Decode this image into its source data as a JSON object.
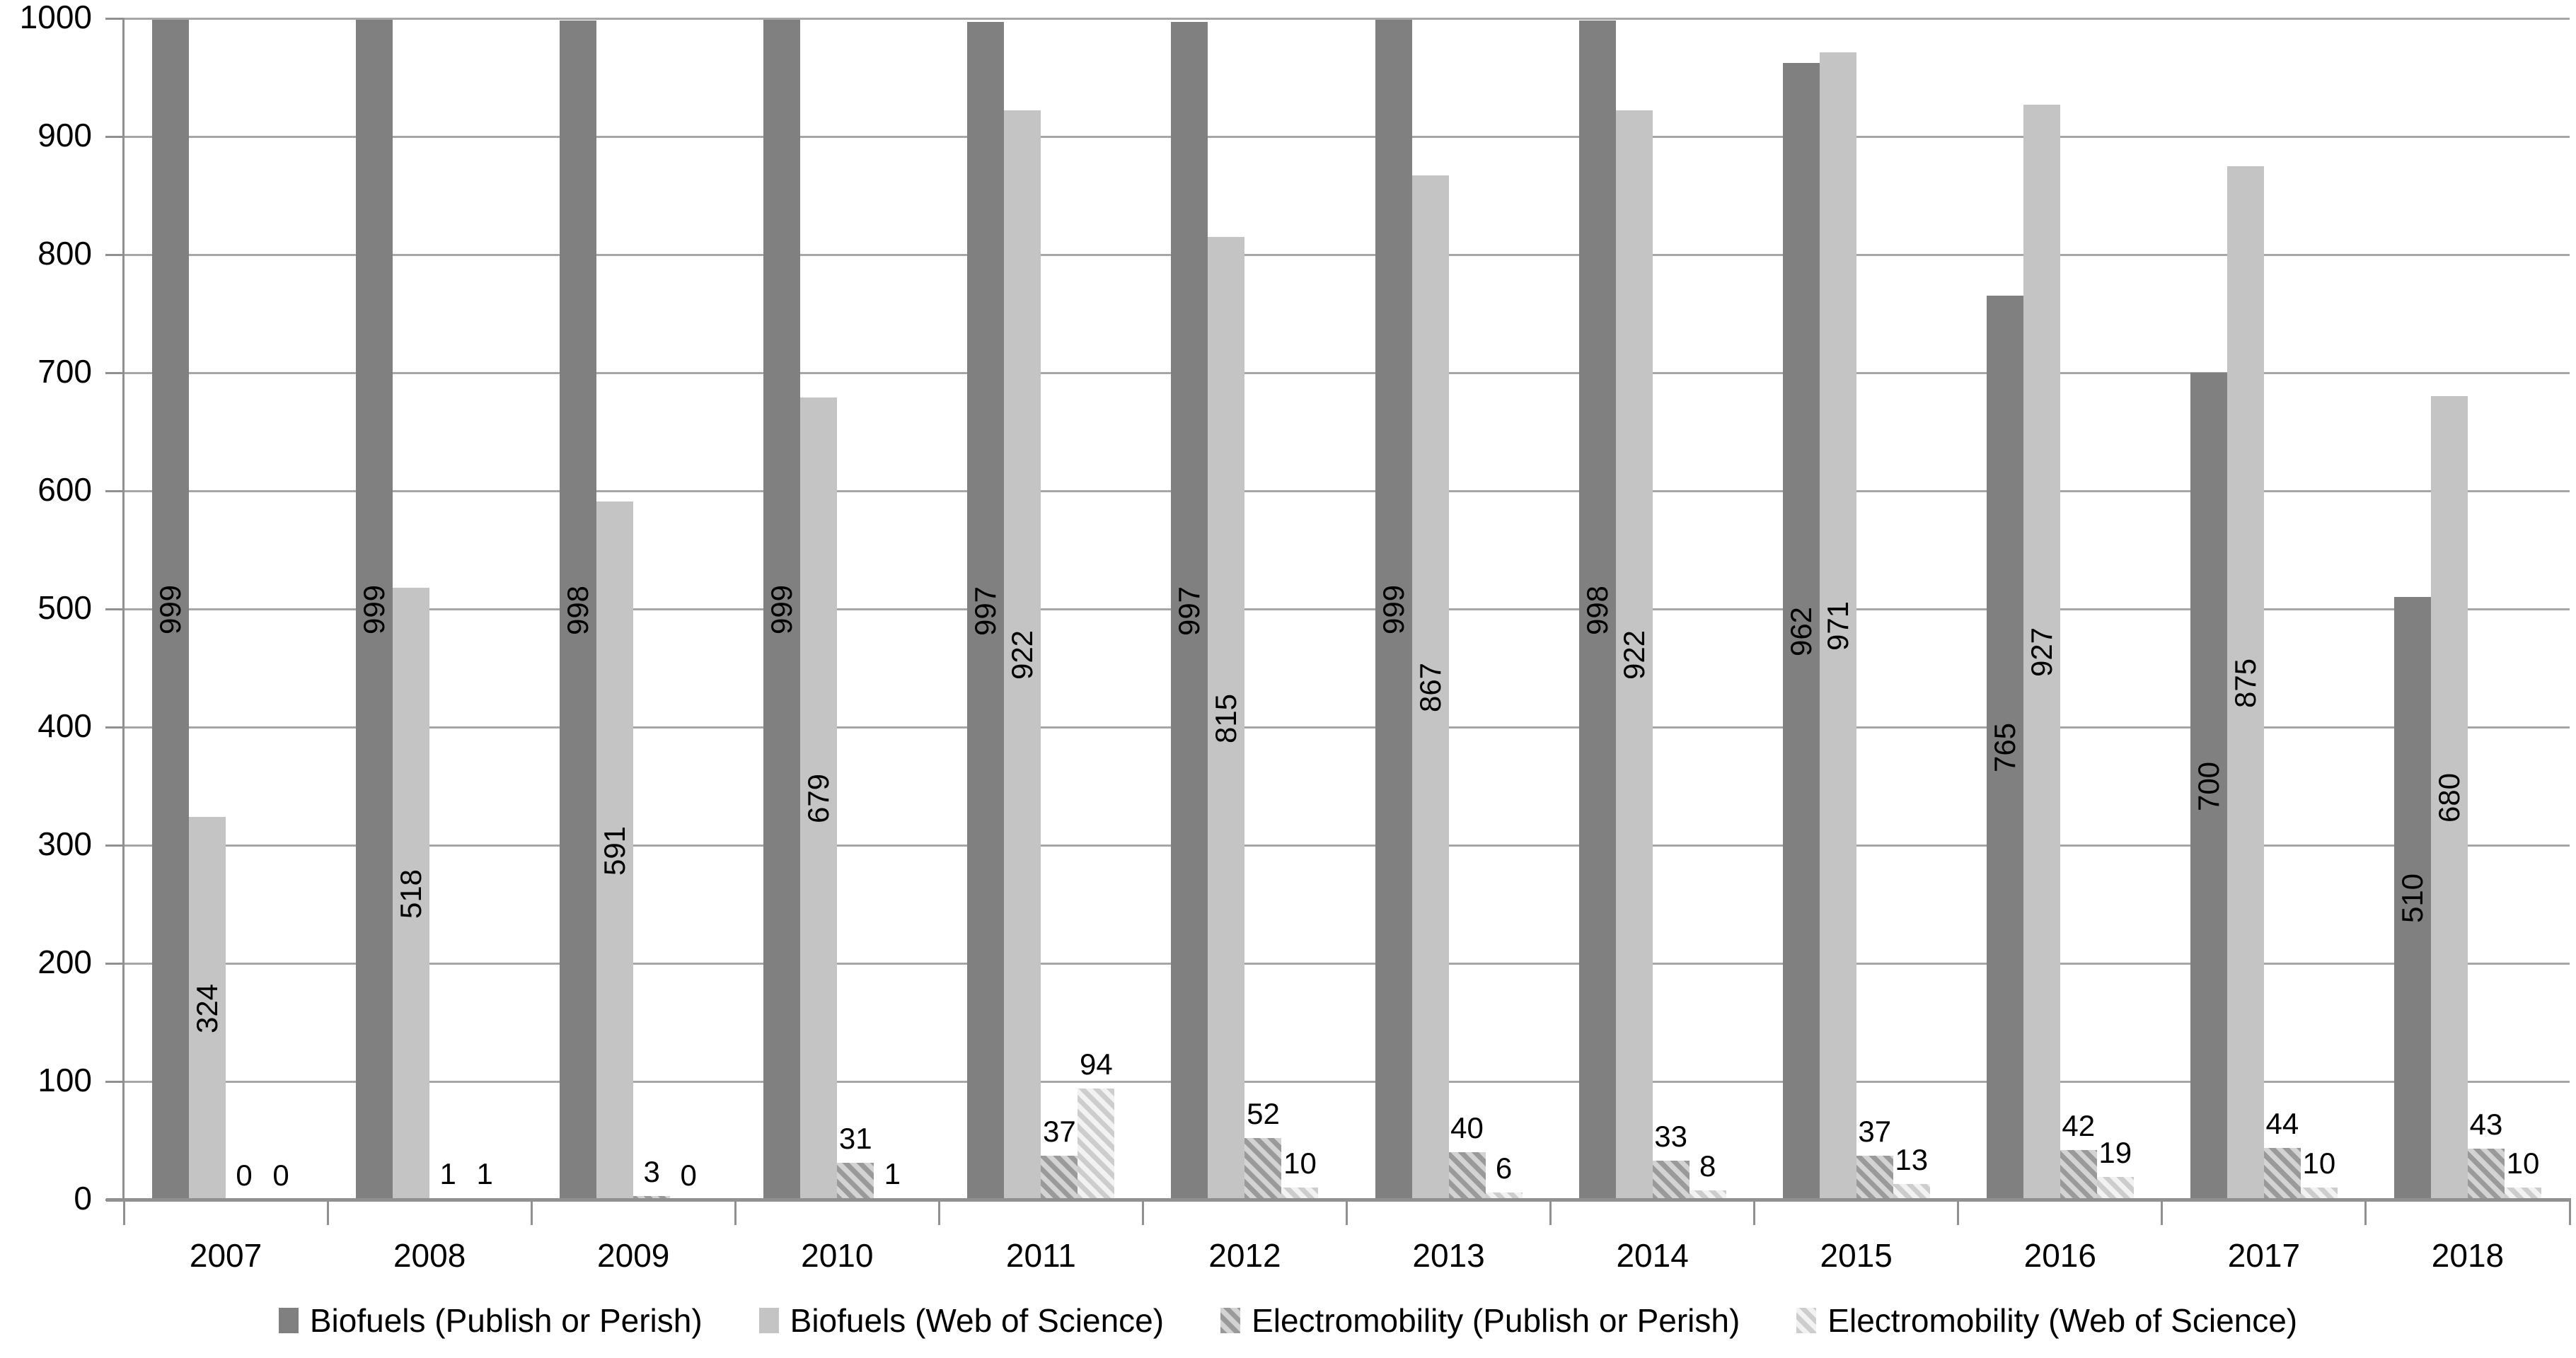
{
  "chart_data": {
    "type": "bar",
    "title": "",
    "categories": [
      "2007",
      "2008",
      "2009",
      "2010",
      "2011",
      "2012",
      "2013",
      "2014",
      "2015",
      "2016",
      "2017",
      "2018"
    ],
    "series": [
      {
        "name": "Biofuels (Publish or Perish)",
        "values": [
          999,
          999,
          998,
          999,
          997,
          997,
          999,
          998,
          962,
          765,
          700,
          510
        ],
        "fill_style": "solid-dark",
        "label_placement": "inside-center-rotated"
      },
      {
        "name": "Biofuels (Web of Science)",
        "values": [
          324,
          518,
          591,
          679,
          922,
          815,
          867,
          922,
          971,
          927,
          875,
          680
        ],
        "fill_style": "solid-light",
        "label_placement": "inside-center-rotated"
      },
      {
        "name": "Electromobility (Publish or Perish)",
        "values": [
          0,
          1,
          3,
          31,
          37,
          52,
          40,
          33,
          37,
          42,
          44,
          43
        ],
        "fill_style": "hatch-dark",
        "label_placement": "outside-end"
      },
      {
        "name": "Electromobility (Web of Science)",
        "values": [
          0,
          1,
          0,
          1,
          94,
          10,
          6,
          8,
          13,
          19,
          10,
          10
        ],
        "fill_style": "hatch-light",
        "label_placement": "outside-end"
      }
    ],
    "xlabel": "",
    "ylabel": "",
    "ylim": [
      0,
      1000
    ],
    "ytick_interval": 100,
    "ytick_labels": [
      "0",
      "100",
      "200",
      "300",
      "400",
      "500",
      "600",
      "700",
      "800",
      "900",
      "1000"
    ],
    "grid": true,
    "legend_position": "bottom-center",
    "data_labels_shown": true
  },
  "colors": {
    "solid_dark": "#808080",
    "solid_light": "#C4C4C4",
    "hatch_dark_stripe": "#9A9A9A",
    "hatch_dark_bg": "#D3D3D3",
    "hatch_light_stripe": "#CDCDCD",
    "hatch_light_bg": "#F2F2F2",
    "gridline": "#A6A6A6",
    "axis": "#909090",
    "label_text": "#000000"
  }
}
